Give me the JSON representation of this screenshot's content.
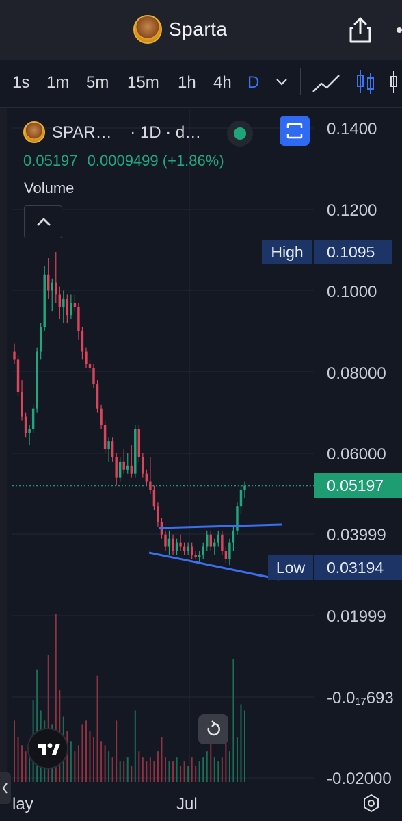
{
  "app": {
    "title": "Sparta"
  },
  "timeframes": [
    {
      "label": "1s",
      "active": false
    },
    {
      "label": "1m",
      "active": false
    },
    {
      "label": "5m",
      "active": false
    },
    {
      "label": "15m",
      "active": false
    },
    {
      "label": "1h",
      "active": false
    },
    {
      "label": "4h",
      "active": false
    },
    {
      "label": "D",
      "active": true
    }
  ],
  "legend": {
    "symbol": "SPAR…",
    "interval": "· 1D · d…",
    "price": "0.05197",
    "change": "0.0009499 (+1.86%)",
    "volume_label": "Volume"
  },
  "price_axis": [
    "0.1400",
    "0.1200",
    "0.1000",
    "0.08000",
    "0.06000",
    "0.03999",
    "0.01999",
    "-0.0₁₇693",
    "-0.02000"
  ],
  "tags": {
    "high_label": "High",
    "high_value": "0.1095",
    "low_label": "Low",
    "low_value": "0.03194",
    "current_value": "0.05197"
  },
  "time_axis": [
    "lay",
    "Jul"
  ],
  "colors": {
    "up": "#21a67d",
    "down": "#d9455a",
    "trendline": "#3b6ff0",
    "accent": "#3d73f5",
    "background": "#141823"
  },
  "chart_data": {
    "type": "candlestick",
    "series_name": "SPAR 1D",
    "ylim": [
      -0.02,
      0.14
    ],
    "high": 0.1095,
    "low": 0.03194,
    "last": 0.05197,
    "candles": [
      [
        0.085,
        0.087,
        0.082,
        0.083
      ],
      [
        0.083,
        0.084,
        0.074,
        0.075
      ],
      [
        0.075,
        0.078,
        0.068,
        0.069
      ],
      [
        0.069,
        0.07,
        0.064,
        0.065
      ],
      [
        0.065,
        0.067,
        0.062,
        0.066
      ],
      [
        0.066,
        0.072,
        0.065,
        0.071
      ],
      [
        0.071,
        0.086,
        0.07,
        0.085
      ],
      [
        0.085,
        0.092,
        0.083,
        0.091
      ],
      [
        0.091,
        0.106,
        0.09,
        0.104
      ],
      [
        0.104,
        0.108,
        0.098,
        0.1
      ],
      [
        0.1,
        0.103,
        0.095,
        0.102
      ],
      [
        0.102,
        0.1095,
        0.097,
        0.099
      ],
      [
        0.099,
        0.101,
        0.093,
        0.096
      ],
      [
        0.096,
        0.1,
        0.092,
        0.098
      ],
      [
        0.098,
        0.099,
        0.092,
        0.094
      ],
      [
        0.094,
        0.099,
        0.093,
        0.097
      ],
      [
        0.097,
        0.099,
        0.095,
        0.096
      ],
      [
        0.096,
        0.097,
        0.088,
        0.09
      ],
      [
        0.09,
        0.091,
        0.083,
        0.085
      ],
      [
        0.085,
        0.086,
        0.081,
        0.082
      ],
      [
        0.082,
        0.083,
        0.08,
        0.081
      ],
      [
        0.081,
        0.082,
        0.076,
        0.077
      ],
      [
        0.077,
        0.078,
        0.07,
        0.071
      ],
      [
        0.071,
        0.072,
        0.066,
        0.067
      ],
      [
        0.067,
        0.068,
        0.06,
        0.061
      ],
      [
        0.061,
        0.064,
        0.058,
        0.063
      ],
      [
        0.063,
        0.064,
        0.058,
        0.059
      ],
      [
        0.059,
        0.06,
        0.052,
        0.054
      ],
      [
        0.054,
        0.059,
        0.053,
        0.058
      ],
      [
        0.058,
        0.061,
        0.055,
        0.056
      ],
      [
        0.056,
        0.06,
        0.055,
        0.057
      ],
      [
        0.057,
        0.062,
        0.054,
        0.055
      ],
      [
        0.055,
        0.067,
        0.054,
        0.066
      ],
      [
        0.066,
        0.067,
        0.058,
        0.059
      ],
      [
        0.059,
        0.06,
        0.054,
        0.055
      ],
      [
        0.055,
        0.056,
        0.052,
        0.053
      ],
      [
        0.053,
        0.059,
        0.05,
        0.051
      ],
      [
        0.051,
        0.052,
        0.046,
        0.047
      ],
      [
        0.047,
        0.048,
        0.042,
        0.043
      ],
      [
        0.043,
        0.044,
        0.039,
        0.04
      ],
      [
        0.04,
        0.041,
        0.036,
        0.037
      ],
      [
        0.037,
        0.041,
        0.035,
        0.039
      ],
      [
        0.039,
        0.04,
        0.035,
        0.036
      ],
      [
        0.036,
        0.039,
        0.035,
        0.038
      ],
      [
        0.038,
        0.04,
        0.036,
        0.037
      ],
      [
        0.037,
        0.038,
        0.035,
        0.036
      ],
      [
        0.036,
        0.038,
        0.035,
        0.037
      ],
      [
        0.037,
        0.038,
        0.034,
        0.035
      ],
      [
        0.035,
        0.036,
        0.034,
        0.0345
      ],
      [
        0.0345,
        0.036,
        0.033,
        0.035
      ],
      [
        0.035,
        0.038,
        0.034,
        0.037
      ],
      [
        0.037,
        0.041,
        0.036,
        0.04
      ],
      [
        0.04,
        0.041,
        0.036,
        0.037
      ],
      [
        0.037,
        0.039,
        0.035,
        0.038
      ],
      [
        0.038,
        0.041,
        0.037,
        0.04
      ],
      [
        0.04,
        0.041,
        0.035,
        0.036
      ],
      [
        0.036,
        0.037,
        0.033,
        0.034
      ],
      [
        0.034,
        0.039,
        0.0325,
        0.038
      ],
      [
        0.038,
        0.042,
        0.036,
        0.041
      ],
      [
        0.041,
        0.048,
        0.04,
        0.047
      ],
      [
        0.047,
        0.052,
        0.045,
        0.051
      ],
      [
        0.051,
        0.053,
        0.049,
        0.05197
      ]
    ],
    "volumes": [
      0.3,
      0.22,
      0.18,
      0.15,
      0.12,
      0.4,
      0.55,
      0.35,
      0.3,
      0.62,
      0.28,
      0.82,
      0.45,
      0.32,
      0.25,
      0.2,
      0.15,
      0.18,
      0.28,
      0.3,
      0.25,
      0.22,
      0.52,
      0.2,
      0.18,
      0.15,
      0.12,
      0.3,
      0.1,
      0.1,
      0.12,
      0.08,
      0.35,
      0.15,
      0.12,
      0.1,
      0.12,
      0.1,
      0.15,
      0.22,
      0.12,
      0.1,
      0.1,
      0.12,
      0.08,
      0.1,
      0.08,
      0.12,
      0.08,
      0.1,
      0.12,
      0.15,
      0.2,
      0.12,
      0.1,
      0.12,
      0.3,
      0.15,
      0.6,
      0.22,
      0.38,
      0.35
    ]
  }
}
